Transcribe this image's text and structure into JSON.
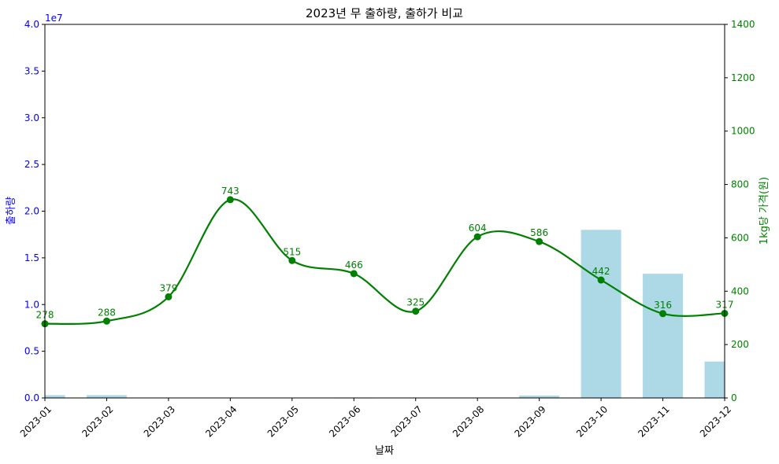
{
  "chart_data": {
    "type": "bar+line",
    "title": "2023년 무 출하량, 출하가 비교",
    "xlabel": "날짜",
    "ylabel_left": "출하량",
    "ylabel_right": "1kg당 가격(원)",
    "left_offset_text": "1e7",
    "ylim_left": [
      0,
      4.0
    ],
    "ylim_right": [
      0,
      1400
    ],
    "categories": [
      "2023-01",
      "2023-02",
      "2023-03",
      "2023-04",
      "2023-05",
      "2023-06",
      "2023-07",
      "2023-08",
      "2023-09",
      "2023-10",
      "2023-11",
      "2023-12"
    ],
    "left_ticks": [
      "0.0",
      "0.5",
      "1.0",
      "1.5",
      "2.0",
      "2.5",
      "3.0",
      "3.5",
      "4.0"
    ],
    "right_ticks": [
      "0",
      "200",
      "400",
      "600",
      "800",
      "1000",
      "1200",
      "1400"
    ],
    "series": [
      {
        "kind": "bar",
        "axis": "left",
        "values": [
          0.03,
          0.03,
          0.0,
          0.0,
          0.0,
          0.005,
          0.0,
          0.0,
          0.025,
          1.8,
          1.33,
          0.39
        ]
      },
      {
        "kind": "line",
        "axis": "right",
        "values": [
          278,
          288,
          379,
          743,
          515,
          466,
          325,
          604,
          586,
          442,
          316,
          317
        ],
        "labels": [
          "278",
          "288",
          "379",
          "743",
          "515",
          "466",
          "325",
          "604",
          "586",
          "442",
          "316",
          "317"
        ]
      }
    ],
    "colors": {
      "bar": "#add8e6",
      "line": "#008000",
      "left_axis": "#0000ff",
      "right_axis": "#008000",
      "text": "#000000"
    },
    "grid": false
  }
}
